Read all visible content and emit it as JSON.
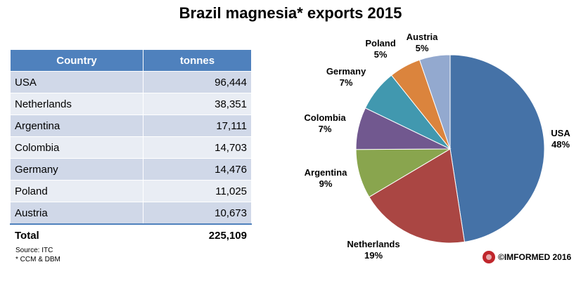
{
  "title": "Brazil magnesia* exports 2015",
  "table": {
    "headers": [
      "Country",
      "tonnes"
    ],
    "rows": [
      {
        "country": "USA",
        "tonnes": "96,444"
      },
      {
        "country": "Netherlands",
        "tonnes": "38,351"
      },
      {
        "country": "Argentina",
        "tonnes": "17,111"
      },
      {
        "country": "Colombia",
        "tonnes": "14,703"
      },
      {
        "country": "Germany",
        "tonnes": "14,476"
      },
      {
        "country": "Poland",
        "tonnes": "11,025"
      },
      {
        "country": "Austria",
        "tonnes": "10,673"
      }
    ],
    "total": {
      "label": "Total",
      "value": "225,109"
    }
  },
  "notes": {
    "source": "Source: ITC",
    "footnote": "* CCM  & DBM"
  },
  "copyright": "©IMFORMED 2016",
  "chart_data": {
    "type": "pie",
    "categories": [
      "USA",
      "Netherlands",
      "Argentina",
      "Colombia",
      "Germany",
      "Poland",
      "Austria"
    ],
    "values": [
      96444,
      38351,
      17111,
      14703,
      14476,
      11025,
      10673
    ],
    "percent_labels": [
      "48%",
      "19%",
      "9%",
      "7%",
      "7%",
      "5%",
      "5%"
    ],
    "colors": [
      "#4572a7",
      "#aa4643",
      "#89a54e",
      "#71588f",
      "#4198af",
      "#db843d",
      "#93a9cf"
    ]
  }
}
